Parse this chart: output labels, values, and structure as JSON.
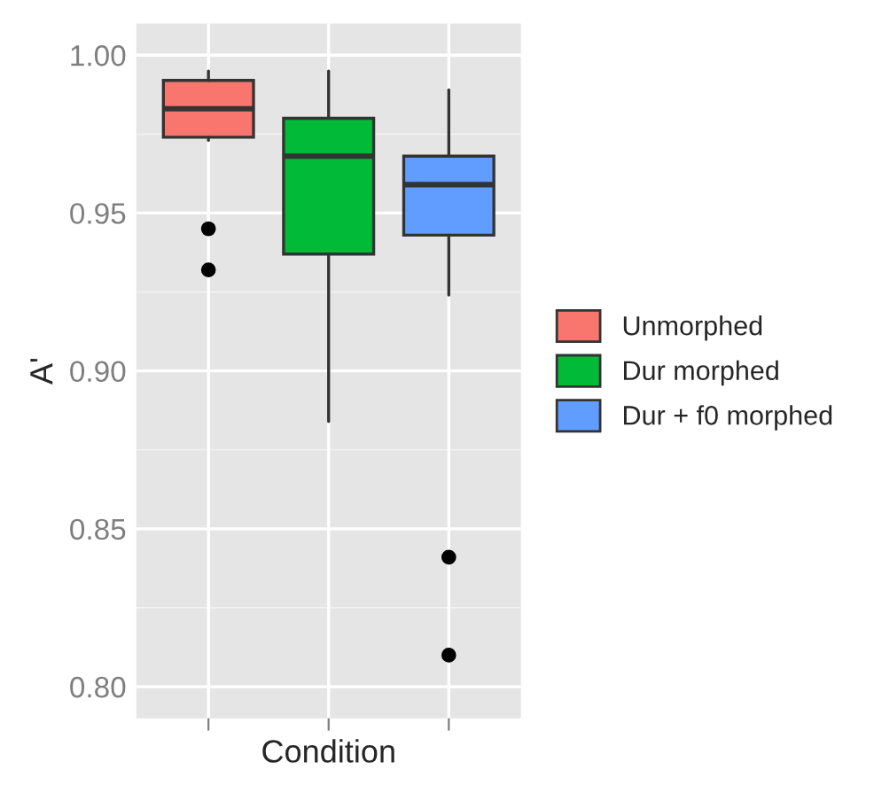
{
  "chart_data": {
    "type": "box",
    "xlabel": "Condition",
    "ylabel": "A'",
    "categories": [
      null,
      null,
      null
    ],
    "series": [
      {
        "name": "Unmorphed",
        "color": "#f8766d",
        "boxes": [
          {
            "low": 0.973,
            "q1": 0.974,
            "median": 0.983,
            "q3": 0.992,
            "high": 0.995,
            "outliers": [
              0.945,
              0.932
            ]
          },
          null,
          null
        ]
      },
      {
        "name": "Dur morphed",
        "color": "#00ba38",
        "boxes": [
          null,
          {
            "low": 0.884,
            "q1": 0.937,
            "median": 0.968,
            "q3": 0.98,
            "high": 0.995
          },
          null
        ]
      },
      {
        "name": "Dur + f0 morphed",
        "color": "#619cff",
        "boxes": [
          null,
          null,
          {
            "low": 0.924,
            "q1": 0.943,
            "median": 0.959,
            "q3": 0.968,
            "high": 0.989,
            "outliers": [
              0.841,
              0.81
            ]
          }
        ]
      }
    ],
    "ylim": [
      0.79,
      1.01
    ],
    "yticks": [
      {
        "value": 0.8,
        "label": "0.80"
      },
      {
        "value": 0.85,
        "label": "0.85"
      },
      {
        "value": 0.9,
        "label": "0.90"
      },
      {
        "value": 0.95,
        "label": "0.95"
      },
      {
        "value": 1.0,
        "label": "1.00"
      }
    ],
    "grid": true,
    "legend": "right",
    "tick_labels": "y"
  }
}
